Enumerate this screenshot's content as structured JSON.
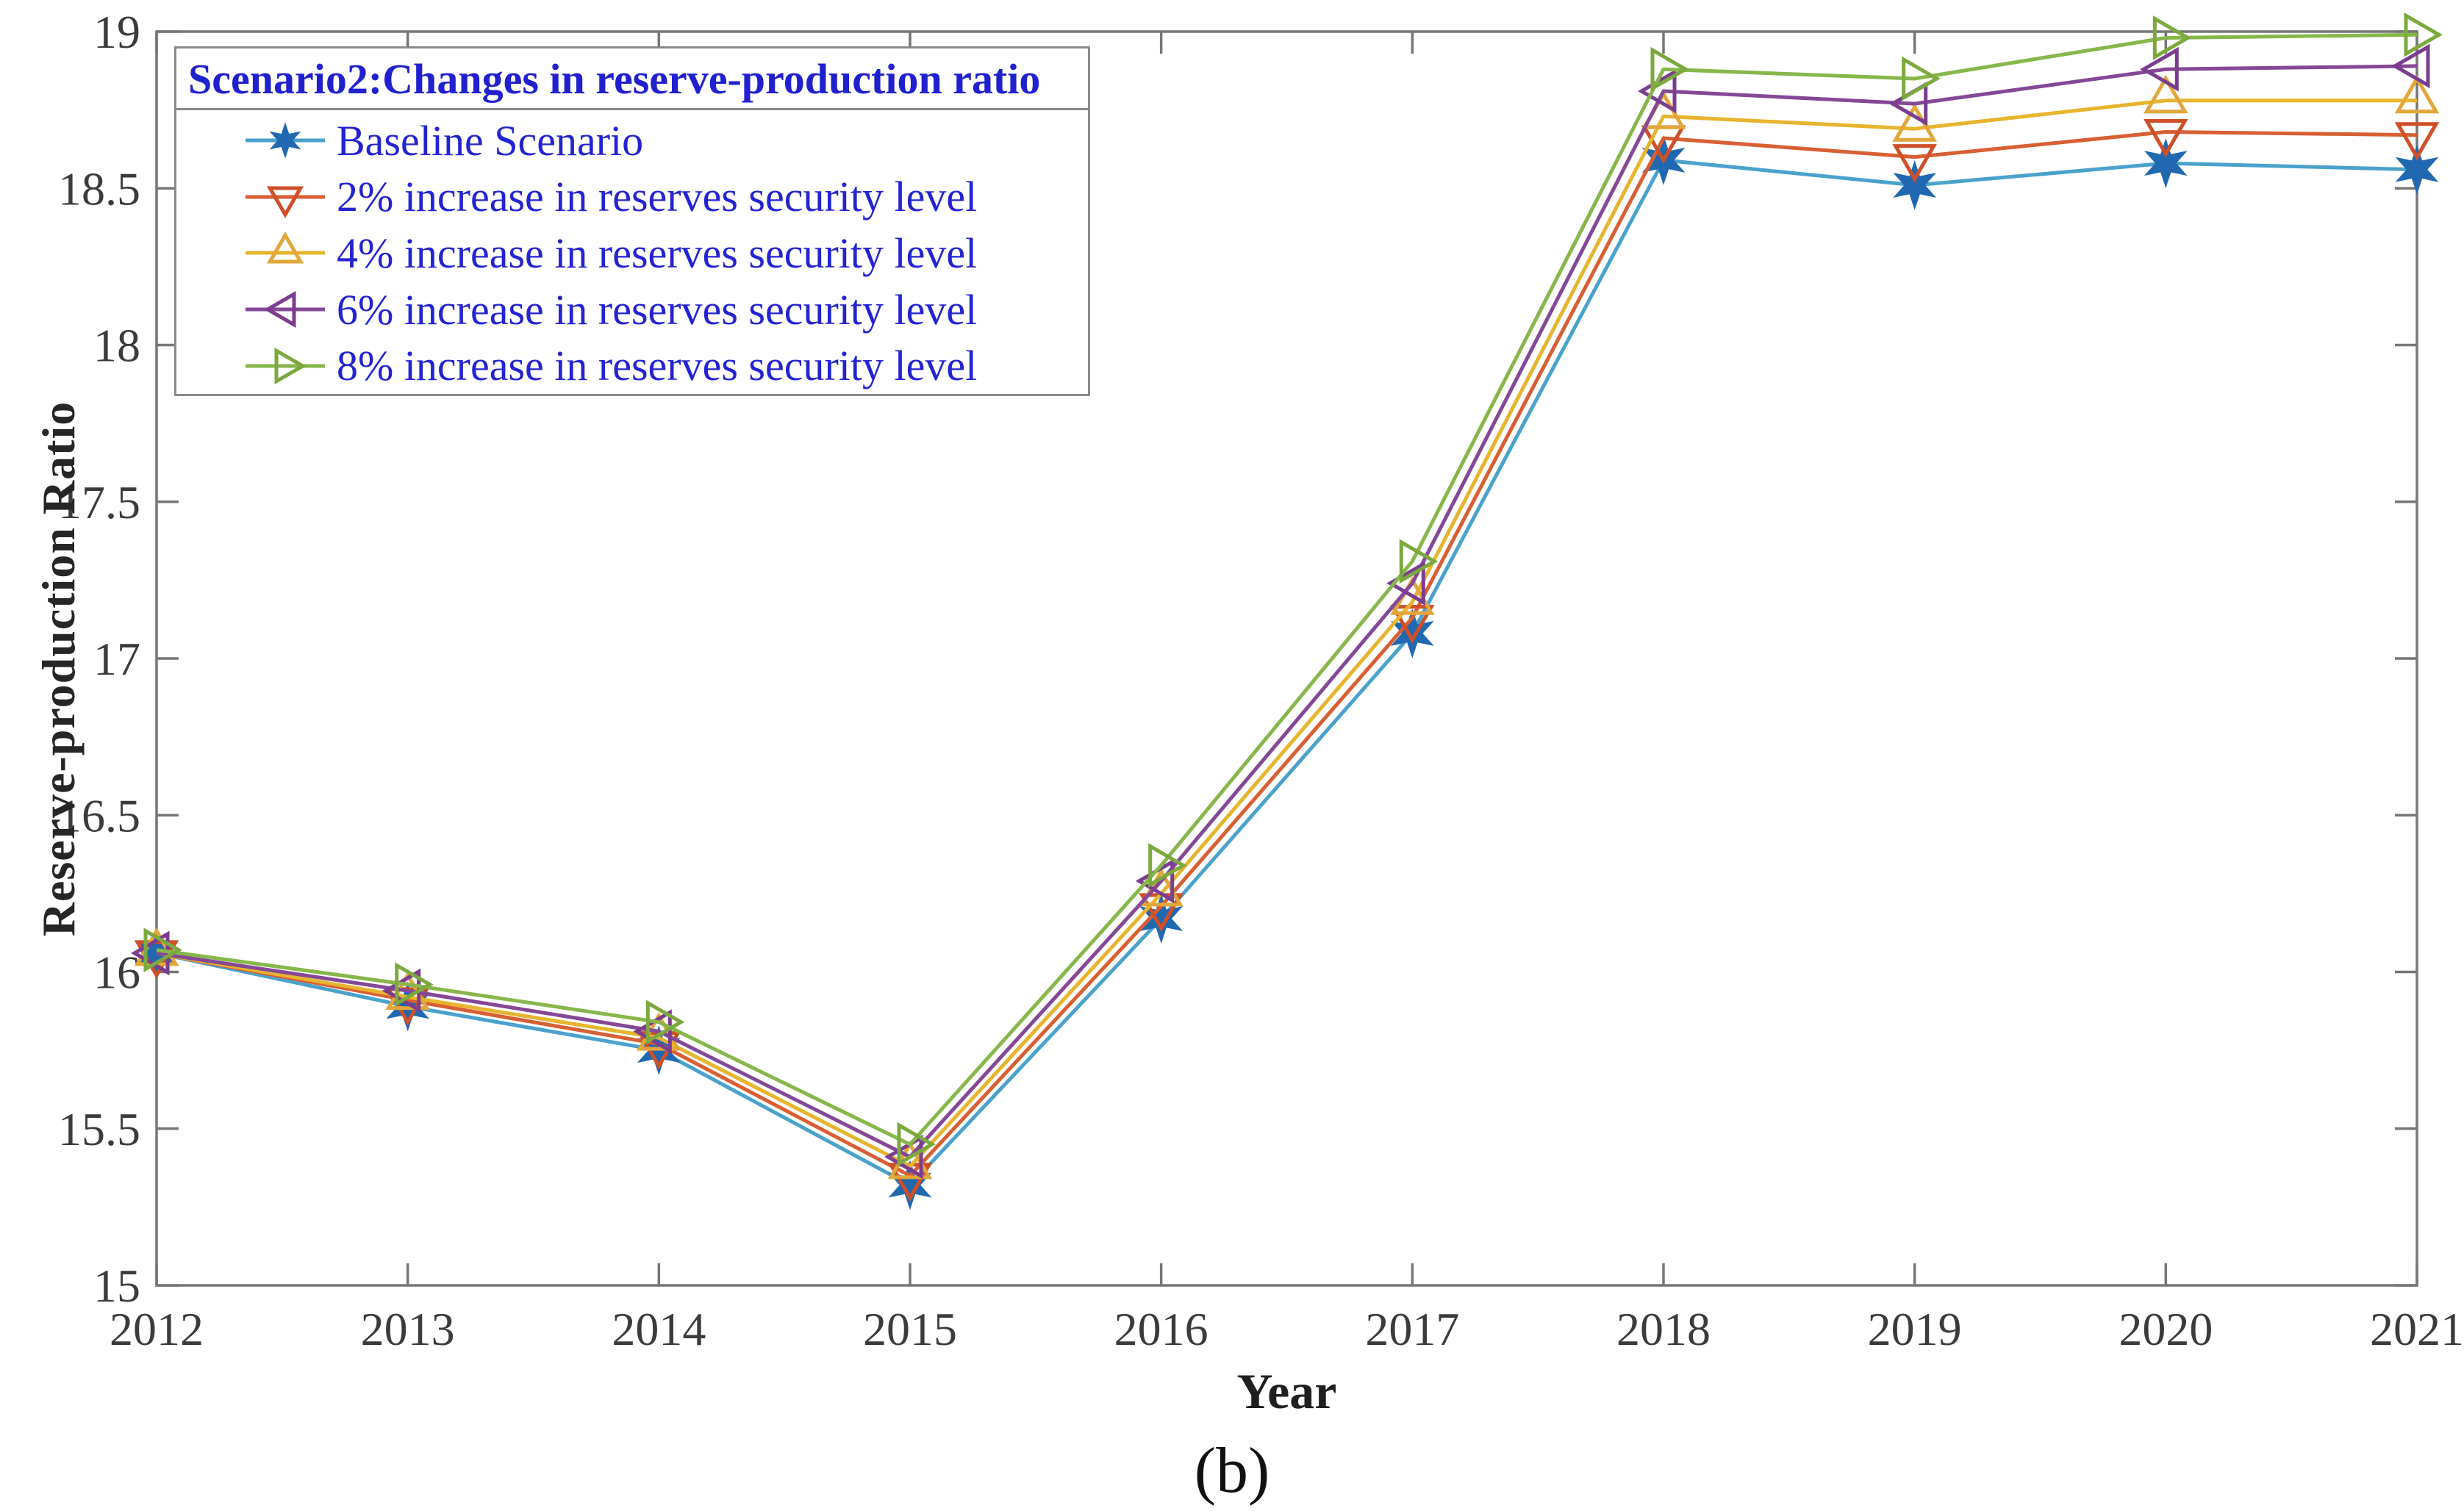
{
  "figure": {
    "caption": "(b)"
  },
  "chart_data": {
    "type": "line",
    "title": "",
    "xlabel": "Year",
    "ylabel": "Reserve-production Ratio",
    "x": [
      2012,
      2013,
      2014,
      2015,
      2016,
      2017,
      2018,
      2019,
      2020,
      2021
    ],
    "ylim": [
      15,
      19
    ],
    "y_ticks": [
      15,
      15.5,
      16,
      16.5,
      17,
      17.5,
      18,
      18.5,
      19
    ],
    "grid": false,
    "axis_color": "#767676",
    "tick_label_color": "#3b3b3b",
    "legend": {
      "title": "Scenario2:Changes in reserve-production ratio",
      "position": "top-left",
      "title_color": "#2020cf",
      "text_color": "#2323d3"
    },
    "series": [
      {
        "name": "Baseline Scenario",
        "marker": "star6",
        "marker_filled": true,
        "line_color": "#4aa2cc",
        "marker_color": "#2068b0",
        "values": [
          16.06,
          15.89,
          15.75,
          15.32,
          16.17,
          17.08,
          18.59,
          18.51,
          18.58,
          18.56
        ]
      },
      {
        "name": "2% increase in reserves security level",
        "marker": "triangle-down",
        "marker_filled": false,
        "line_color": "#d85f33",
        "marker_color": "#ce4f28",
        "values": [
          16.06,
          15.91,
          15.77,
          15.35,
          16.21,
          17.13,
          18.66,
          18.6,
          18.68,
          18.67
        ]
      },
      {
        "name": "4% increase in reserves security level",
        "marker": "triangle-up",
        "marker_filled": false,
        "line_color": "#e7b42e",
        "marker_color": "#e2a63a",
        "values": [
          16.06,
          15.92,
          15.79,
          15.38,
          16.25,
          17.18,
          18.73,
          18.69,
          18.78,
          18.78
        ]
      },
      {
        "name": "6% increase in reserves security level",
        "marker": "triangle-left",
        "marker_filled": false,
        "line_color": "#854897",
        "marker_color": "#7a3d8f",
        "values": [
          16.06,
          15.94,
          15.81,
          15.41,
          16.29,
          17.24,
          18.81,
          18.77,
          18.88,
          18.89
        ]
      },
      {
        "name": "8% increase in reserves security level",
        "marker": "triangle-right",
        "marker_filled": false,
        "line_color": "#87b74a",
        "marker_color": "#7ca93e",
        "values": [
          16.07,
          15.96,
          15.84,
          15.45,
          16.34,
          17.31,
          18.88,
          18.85,
          18.98,
          18.99
        ]
      }
    ]
  }
}
